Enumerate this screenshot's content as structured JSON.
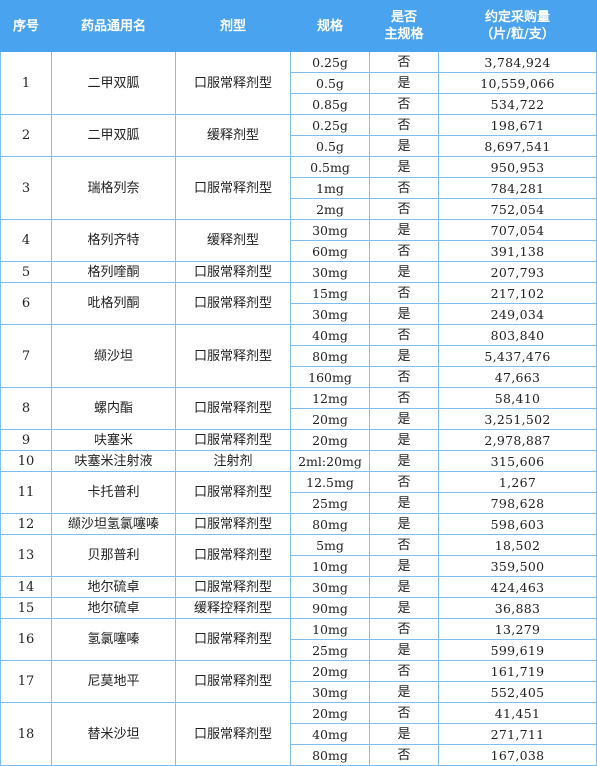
{
  "header": {
    "no": "序号",
    "name": "药品通用名",
    "form": "剂型",
    "spec": "规格",
    "is_main_l1": "是否",
    "is_main_l2": "主规格",
    "qty_l1": "约定采购量",
    "qty_l2": "（片/粒/支）"
  },
  "drugs": [
    {
      "no": "1",
      "name": "二甲双胍",
      "form": "口服常释剂型",
      "specs": [
        {
          "spec": "0.25g",
          "main": "否",
          "qty": "3,784,924"
        },
        {
          "spec": "0.5g",
          "main": "是",
          "qty": "10,559,066"
        },
        {
          "spec": "0.85g",
          "main": "否",
          "qty": "534,722"
        }
      ]
    },
    {
      "no": "2",
      "name": "二甲双胍",
      "form": "缓释剂型",
      "specs": [
        {
          "spec": "0.25g",
          "main": "否",
          "qty": "198,671"
        },
        {
          "spec": "0.5g",
          "main": "是",
          "qty": "8,697,541"
        }
      ]
    },
    {
      "no": "3",
      "name": "瑞格列奈",
      "form": "口服常释剂型",
      "specs": [
        {
          "spec": "0.5mg",
          "main": "是",
          "qty": "950,953"
        },
        {
          "spec": "1mg",
          "main": "否",
          "qty": "784,281"
        },
        {
          "spec": "2mg",
          "main": "否",
          "qty": "752,054"
        }
      ]
    },
    {
      "no": "4",
      "name": "格列齐特",
      "form": "缓释剂型",
      "specs": [
        {
          "spec": "30mg",
          "main": "是",
          "qty": "707,054"
        },
        {
          "spec": "60mg",
          "main": "否",
          "qty": "391,138"
        }
      ]
    },
    {
      "no": "5",
      "name": "格列喹酮",
      "form": "口服常释剂型",
      "specs": [
        {
          "spec": "30mg",
          "main": "是",
          "qty": "207,793"
        }
      ]
    },
    {
      "no": "6",
      "name": "吡格列酮",
      "form": "口服常释剂型",
      "specs": [
        {
          "spec": "15mg",
          "main": "否",
          "qty": "217,102"
        },
        {
          "spec": "30mg",
          "main": "是",
          "qty": "249,034"
        }
      ]
    },
    {
      "no": "7",
      "name": "缬沙坦",
      "form": "口服常释剂型",
      "specs": [
        {
          "spec": "40mg",
          "main": "否",
          "qty": "803,840"
        },
        {
          "spec": "80mg",
          "main": "是",
          "qty": "5,437,476"
        },
        {
          "spec": "160mg",
          "main": "否",
          "qty": "47,663"
        }
      ]
    },
    {
      "no": "8",
      "name": "螺内酯",
      "form": "口服常释剂型",
      "specs": [
        {
          "spec": "12mg",
          "main": "否",
          "qty": "58,410"
        },
        {
          "spec": "20mg",
          "main": "是",
          "qty": "3,251,502"
        }
      ]
    },
    {
      "no": "9",
      "name": "呋塞米",
      "form": "口服常释剂型",
      "specs": [
        {
          "spec": "20mg",
          "main": "是",
          "qty": "2,978,887"
        }
      ]
    },
    {
      "no": "10",
      "name": "呋塞米注射液",
      "form": "注射剂",
      "specs": [
        {
          "spec": "2ml:20mg",
          "main": "是",
          "qty": "315,606"
        }
      ]
    },
    {
      "no": "11",
      "name": "卡托普利",
      "form": "口服常释剂型",
      "specs": [
        {
          "spec": "12.5mg",
          "main": "否",
          "qty": "1,267"
        },
        {
          "spec": "25mg",
          "main": "是",
          "qty": "798,628"
        }
      ]
    },
    {
      "no": "12",
      "name": "缬沙坦氢氯噻嗪",
      "form": "口服常释剂型",
      "specs": [
        {
          "spec": "80mg",
          "main": "是",
          "qty": "598,603"
        }
      ]
    },
    {
      "no": "13",
      "name": "贝那普利",
      "form": "口服常释剂型",
      "specs": [
        {
          "spec": "5mg",
          "main": "否",
          "qty": "18,502"
        },
        {
          "spec": "10mg",
          "main": "是",
          "qty": "359,500"
        }
      ]
    },
    {
      "no": "14",
      "name": "地尔硫卓",
      "form": "口服常释剂型",
      "specs": [
        {
          "spec": "30mg",
          "main": "是",
          "qty": "424,463"
        }
      ]
    },
    {
      "no": "15",
      "name": "地尔硫卓",
      "form": "缓释控释剂型",
      "specs": [
        {
          "spec": "90mg",
          "main": "是",
          "qty": "36,883"
        }
      ]
    },
    {
      "no": "16",
      "name": "氢氯噻嗪",
      "form": "口服常释剂型",
      "specs": [
        {
          "spec": "10mg",
          "main": "否",
          "qty": "13,279"
        },
        {
          "spec": "25mg",
          "main": "是",
          "qty": "599,619"
        }
      ]
    },
    {
      "no": "17",
      "name": "尼莫地平",
      "form": "口服常释剂型",
      "specs": [
        {
          "spec": "20mg",
          "main": "否",
          "qty": "161,719"
        },
        {
          "spec": "30mg",
          "main": "是",
          "qty": "552,405"
        }
      ]
    },
    {
      "no": "18",
      "name": "替米沙坦",
      "form": "口服常释剂型",
      "specs": [
        {
          "spec": "20mg",
          "main": "否",
          "qty": "41,451"
        },
        {
          "spec": "40mg",
          "main": "是",
          "qty": "271,711"
        },
        {
          "spec": "80mg",
          "main": "否",
          "qty": "167,038"
        }
      ]
    }
  ]
}
